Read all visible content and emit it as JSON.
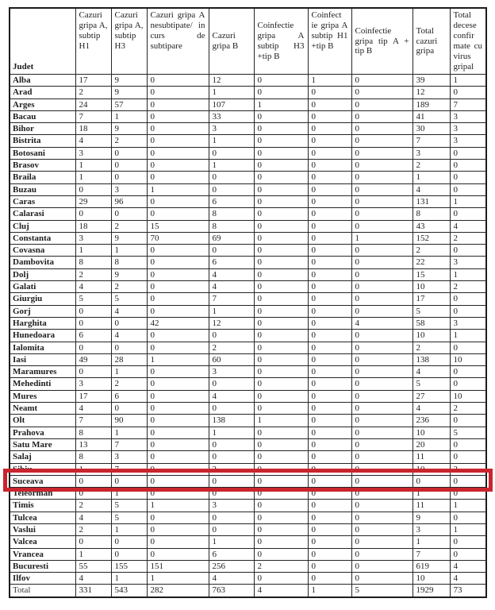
{
  "table": {
    "corner_label": "Judet",
    "columns": [
      "Cazuri gripa A, subtip H1",
      "Cazuri gripa A, subtip H3",
      "Cazuri gripa A nesubtipate/ in curs de subtipare",
      "Cazuri gripa B",
      "Coinfectie gripa A subtip H3 +tip B",
      "Coinfect ie gripa A subtip H1 +tip B",
      "Coinfectie gripa tip A + tip B",
      "Total cazuri gripa",
      "Total decese confir mate cu virus gripal"
    ],
    "rows": [
      {
        "judet": "Alba",
        "values": [
          17,
          9,
          0,
          12,
          0,
          1,
          0,
          39,
          1
        ]
      },
      {
        "judet": "Arad",
        "values": [
          2,
          9,
          0,
          1,
          0,
          0,
          0,
          12,
          0
        ]
      },
      {
        "judet": "Arges",
        "values": [
          24,
          57,
          0,
          107,
          1,
          0,
          0,
          189,
          7
        ]
      },
      {
        "judet": "Bacau",
        "values": [
          7,
          1,
          0,
          33,
          0,
          0,
          0,
          41,
          3
        ]
      },
      {
        "judet": "Bihor",
        "values": [
          18,
          9,
          0,
          3,
          0,
          0,
          0,
          30,
          3
        ]
      },
      {
        "judet": "Bistrita",
        "values": [
          4,
          2,
          0,
          1,
          0,
          0,
          0,
          7,
          3
        ]
      },
      {
        "judet": "Botosani",
        "values": [
          3,
          0,
          0,
          0,
          0,
          0,
          0,
          3,
          0
        ]
      },
      {
        "judet": "Brasov",
        "values": [
          1,
          0,
          0,
          1,
          0,
          0,
          0,
          2,
          0
        ]
      },
      {
        "judet": "Braila",
        "values": [
          1,
          0,
          0,
          0,
          0,
          0,
          0,
          1,
          0
        ]
      },
      {
        "judet": "Buzau",
        "values": [
          0,
          3,
          1,
          0,
          0,
          0,
          0,
          4,
          0
        ]
      },
      {
        "judet": "Caras",
        "values": [
          29,
          96,
          0,
          6,
          0,
          0,
          0,
          131,
          1
        ]
      },
      {
        "judet": "Calarasi",
        "values": [
          0,
          0,
          0,
          8,
          0,
          0,
          0,
          8,
          0
        ]
      },
      {
        "judet": "Cluj",
        "values": [
          18,
          2,
          15,
          8,
          0,
          0,
          0,
          43,
          4
        ]
      },
      {
        "judet": "Constanta",
        "values": [
          3,
          9,
          70,
          69,
          0,
          0,
          1,
          152,
          2
        ]
      },
      {
        "judet": "Covasna",
        "values": [
          1,
          1,
          0,
          0,
          0,
          0,
          0,
          2,
          0
        ]
      },
      {
        "judet": "Dambovita",
        "values": [
          8,
          8,
          0,
          6,
          0,
          0,
          0,
          22,
          3
        ]
      },
      {
        "judet": "Dolj",
        "values": [
          2,
          9,
          0,
          4,
          0,
          0,
          0,
          15,
          1
        ]
      },
      {
        "judet": "Galati",
        "values": [
          4,
          2,
          0,
          4,
          0,
          0,
          0,
          10,
          2
        ]
      },
      {
        "judet": "Giurgiu",
        "values": [
          5,
          5,
          0,
          7,
          0,
          0,
          0,
          17,
          0
        ]
      },
      {
        "judet": "Gorj",
        "values": [
          0,
          4,
          0,
          1,
          0,
          0,
          0,
          5,
          0
        ]
      },
      {
        "judet": "Harghita",
        "values": [
          0,
          0,
          42,
          12,
          0,
          0,
          4,
          58,
          3
        ]
      },
      {
        "judet": "Hunedoara",
        "values": [
          6,
          4,
          0,
          0,
          0,
          0,
          0,
          10,
          1
        ]
      },
      {
        "judet": "Ialomita",
        "values": [
          0,
          0,
          0,
          2,
          0,
          0,
          0,
          2,
          0
        ]
      },
      {
        "judet": "Iasi",
        "values": [
          49,
          28,
          1,
          60,
          0,
          0,
          0,
          138,
          10
        ]
      },
      {
        "judet": "Maramures",
        "values": [
          0,
          1,
          0,
          3,
          0,
          0,
          0,
          4,
          0
        ]
      },
      {
        "judet": "Mehedinti",
        "values": [
          3,
          2,
          0,
          0,
          0,
          0,
          0,
          5,
          0
        ]
      },
      {
        "judet": "Mures",
        "values": [
          17,
          6,
          0,
          4,
          0,
          0,
          0,
          27,
          10
        ]
      },
      {
        "judet": "Neamt",
        "values": [
          4,
          0,
          0,
          0,
          0,
          0,
          0,
          4,
          2
        ]
      },
      {
        "judet": "Olt",
        "values": [
          7,
          90,
          0,
          138,
          1,
          0,
          0,
          236,
          0
        ]
      },
      {
        "judet": "Prahova",
        "values": [
          8,
          1,
          0,
          1,
          0,
          0,
          0,
          10,
          5
        ]
      },
      {
        "judet": "Satu Mare",
        "values": [
          13,
          7,
          0,
          0,
          0,
          0,
          0,
          20,
          0
        ]
      },
      {
        "judet": "Salaj",
        "values": [
          8,
          3,
          0,
          0,
          0,
          0,
          0,
          11,
          0
        ]
      },
      {
        "judet": "Sibiu",
        "values": [
          1,
          7,
          0,
          2,
          0,
          0,
          0,
          10,
          2
        ]
      },
      {
        "judet": "Suceava",
        "values": [
          0,
          0,
          0,
          0,
          0,
          0,
          0,
          0,
          0
        ]
      },
      {
        "judet": "Teleorman",
        "values": [
          0,
          1,
          0,
          0,
          0,
          0,
          0,
          1,
          0
        ]
      },
      {
        "judet": "Timis",
        "values": [
          2,
          5,
          1,
          3,
          0,
          0,
          0,
          11,
          1
        ]
      },
      {
        "judet": "Tulcea",
        "values": [
          4,
          5,
          0,
          0,
          0,
          0,
          0,
          9,
          0
        ]
      },
      {
        "judet": "Vaslui",
        "values": [
          2,
          1,
          0,
          0,
          0,
          0,
          0,
          3,
          1
        ]
      },
      {
        "judet": "Valcea",
        "values": [
          0,
          0,
          0,
          1,
          0,
          0,
          0,
          1,
          0
        ]
      },
      {
        "judet": "Vrancea",
        "values": [
          1,
          0,
          0,
          6,
          0,
          0,
          0,
          7,
          0
        ]
      },
      {
        "judet": "Bucuresti",
        "values": [
          55,
          155,
          151,
          256,
          2,
          0,
          0,
          619,
          4
        ]
      },
      {
        "judet": "Ilfov",
        "values": [
          4,
          1,
          1,
          4,
          0,
          0,
          0,
          10,
          4
        ]
      },
      {
        "judet": "Total",
        "values": [
          331,
          543,
          282,
          763,
          4,
          1,
          5,
          1929,
          73
        ],
        "label_regular": true
      }
    ],
    "highlight": {
      "row": "Suceava",
      "color": "#c9252e"
    }
  }
}
